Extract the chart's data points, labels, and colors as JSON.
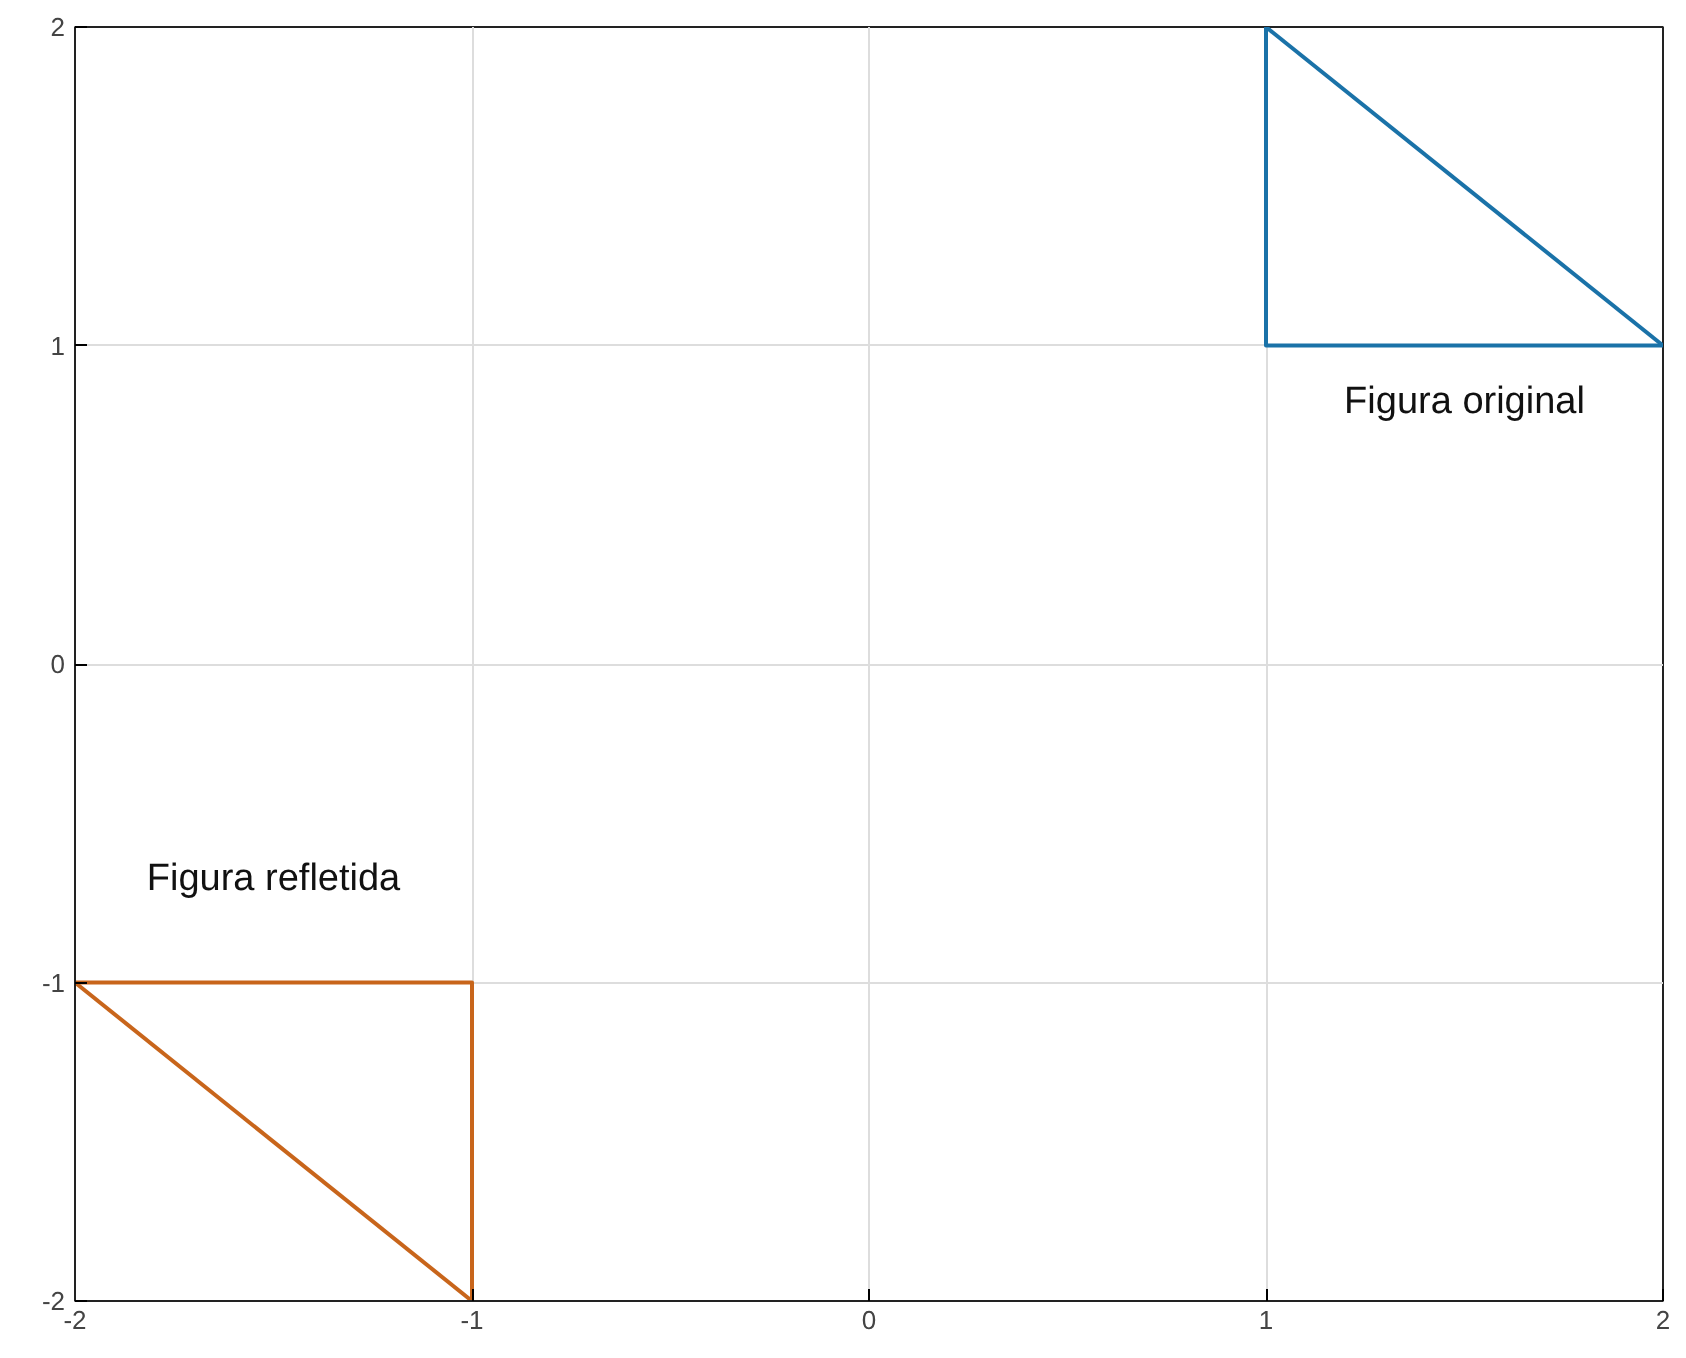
{
  "chart_data": {
    "type": "line",
    "xlim": [
      -2,
      2
    ],
    "ylim": [
      -2,
      2
    ],
    "xticks": [
      -2,
      -1,
      0,
      1,
      2
    ],
    "yticks": [
      -2,
      -1,
      0,
      1,
      2
    ],
    "grid": true,
    "line_style": "solid",
    "series": [
      {
        "name": "Figura original",
        "color": "#1a72a8",
        "x": [
          1,
          1,
          2
        ],
        "values": [
          2,
          1,
          1
        ]
      },
      {
        "color": "#1a72a8",
        "x": [
          1,
          2
        ],
        "values": [
          2,
          1
        ]
      },
      {
        "name": "Figura refletida",
        "color": "#c8651b",
        "x": [
          -2,
          -1,
          -1
        ],
        "values": [
          -1,
          -1,
          -2
        ]
      },
      {
        "color": "#c8651b",
        "x": [
          -2,
          -1
        ],
        "values": [
          -1,
          -2
        ]
      }
    ]
  }
}
